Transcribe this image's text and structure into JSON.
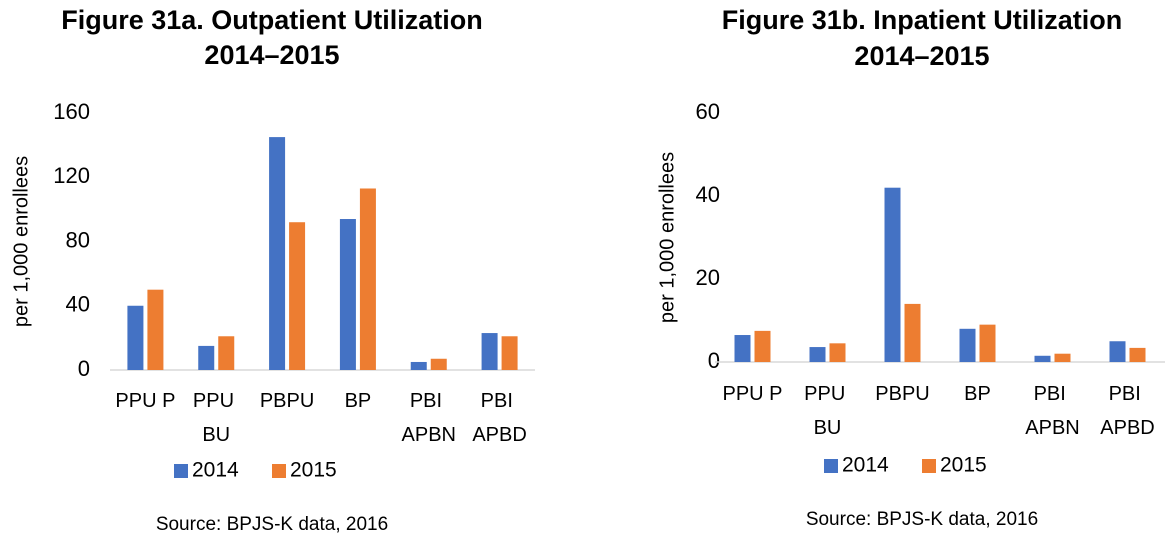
{
  "chart_data": [
    {
      "type": "bar",
      "title": "Figure 31a. Outpatient Utilization",
      "subtitle": "2014–2015",
      "y_label": "per 1,000 enrollees",
      "source": "Source: BPJS-K data, 2016",
      "categories": [
        "PPU P",
        "PPU BU",
        "PBPU",
        "BP",
        "PBI APBN",
        "PBI APBD"
      ],
      "series": [
        {
          "name": "2014",
          "color": "#4472c4",
          "values": [
            40,
            15,
            145,
            94,
            5,
            23
          ]
        },
        {
          "name": "2015",
          "color": "#ed7d31",
          "values": [
            50,
            21,
            92,
            113,
            7,
            21
          ]
        }
      ],
      "ylim": [
        0,
        160
      ],
      "yticks": [
        0,
        40,
        80,
        120,
        160
      ],
      "grid": false,
      "legend": "bottom"
    },
    {
      "type": "bar",
      "title": "Figure 31b. Inpatient Utilization",
      "subtitle": "2014–2015",
      "y_label": "per 1,000 enrollees",
      "source": "Source: BPJS-K data, 2016",
      "categories": [
        "PPU P",
        "PPU BU",
        "PBPU",
        "BP",
        "PBI APBN",
        "PBI APBD"
      ],
      "series": [
        {
          "name": "2014",
          "color": "#4472c4",
          "values": [
            6.5,
            3.6,
            42,
            8,
            1.5,
            5
          ]
        },
        {
          "name": "2015",
          "color": "#ed7d31",
          "values": [
            7.5,
            4.5,
            14,
            9,
            2,
            3.4
          ]
        }
      ],
      "ylim": [
        0,
        60
      ],
      "yticks": [
        0,
        20,
        40,
        60
      ],
      "grid": false,
      "legend": "bottom"
    }
  ]
}
